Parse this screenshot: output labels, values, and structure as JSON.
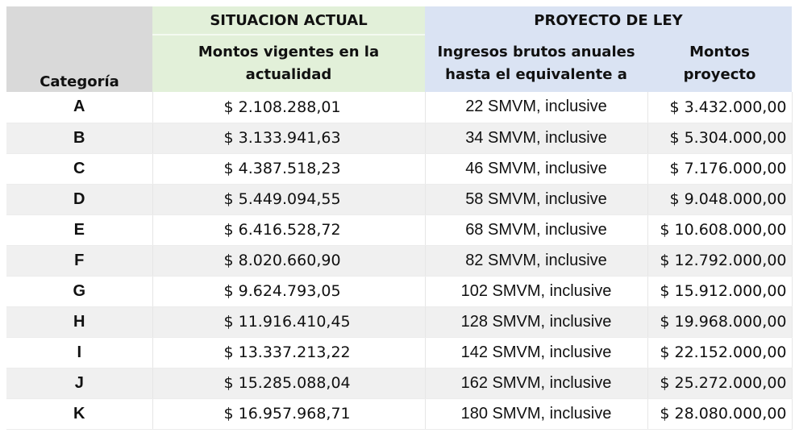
{
  "header": {
    "situacion_actual": "SITUACION ACTUAL",
    "proyecto_de_ley": "PROYECTO DE LEY",
    "categoria": "Categoría",
    "montos_vigentes_l1": "Montos vigentes en la",
    "montos_vigentes_l2": "actualidad",
    "ingresos_l1": "Ingresos brutos anuales",
    "ingresos_l2": "hasta el equivalente a",
    "montos_proyecto_l1": "Montos",
    "montos_proyecto_l2": "proyecto"
  },
  "rows": [
    {
      "categoria": "A",
      "monto_vigente": "$ 2.108.288,01",
      "ingresos": "22 SMVM, inclusive",
      "monto_proyecto": "$ 3.432.000,00"
    },
    {
      "categoria": "B",
      "monto_vigente": "$ 3.133.941,63",
      "ingresos": "34 SMVM, inclusive",
      "monto_proyecto": "$ 5.304.000,00"
    },
    {
      "categoria": "C",
      "monto_vigente": "$ 4.387.518,23",
      "ingresos": "46 SMVM, inclusive",
      "monto_proyecto": "$ 7.176.000,00"
    },
    {
      "categoria": "D",
      "monto_vigente": "$ 5.449.094,55",
      "ingresos": "58 SMVM, inclusive",
      "monto_proyecto": "$ 9.048.000,00"
    },
    {
      "categoria": "E",
      "monto_vigente": "$ 6.416.528,72",
      "ingresos": "68 SMVM, inclusive",
      "monto_proyecto": "$ 10.608.000,00"
    },
    {
      "categoria": "F",
      "monto_vigente": "$ 8.020.660,90",
      "ingresos": "82 SMVM, inclusive",
      "monto_proyecto": "$ 12.792.000,00"
    },
    {
      "categoria": "G",
      "monto_vigente": "$ 9.624.793,05",
      "ingresos": "102 SMVM, inclusive",
      "monto_proyecto": "$ 15.912.000,00"
    },
    {
      "categoria": "H",
      "monto_vigente": "$ 11.916.410,45",
      "ingresos": "128 SMVM, inclusive",
      "monto_proyecto": "$ 19.968.000,00"
    },
    {
      "categoria": "I",
      "monto_vigente": "$ 13.337.213,22",
      "ingresos": "142 SMVM, inclusive",
      "monto_proyecto": "$ 22.152.000,00"
    },
    {
      "categoria": "J",
      "monto_vigente": "$ 15.285.088,04",
      "ingresos": "162 SMVM, inclusive",
      "monto_proyecto": "$ 25.272.000,00"
    },
    {
      "categoria": "K",
      "monto_vigente": "$ 16.957.968,71",
      "ingresos": "180 SMVM, inclusive",
      "monto_proyecto": "$ 28.080.000,00"
    }
  ],
  "colors": {
    "categoria_header_bg": "#d9d9d9",
    "situacion_actual_bg": "#e2f0d9",
    "proyecto_de_ley_bg": "#dae3f3",
    "stripe_bg": "#f0f0f0"
  }
}
